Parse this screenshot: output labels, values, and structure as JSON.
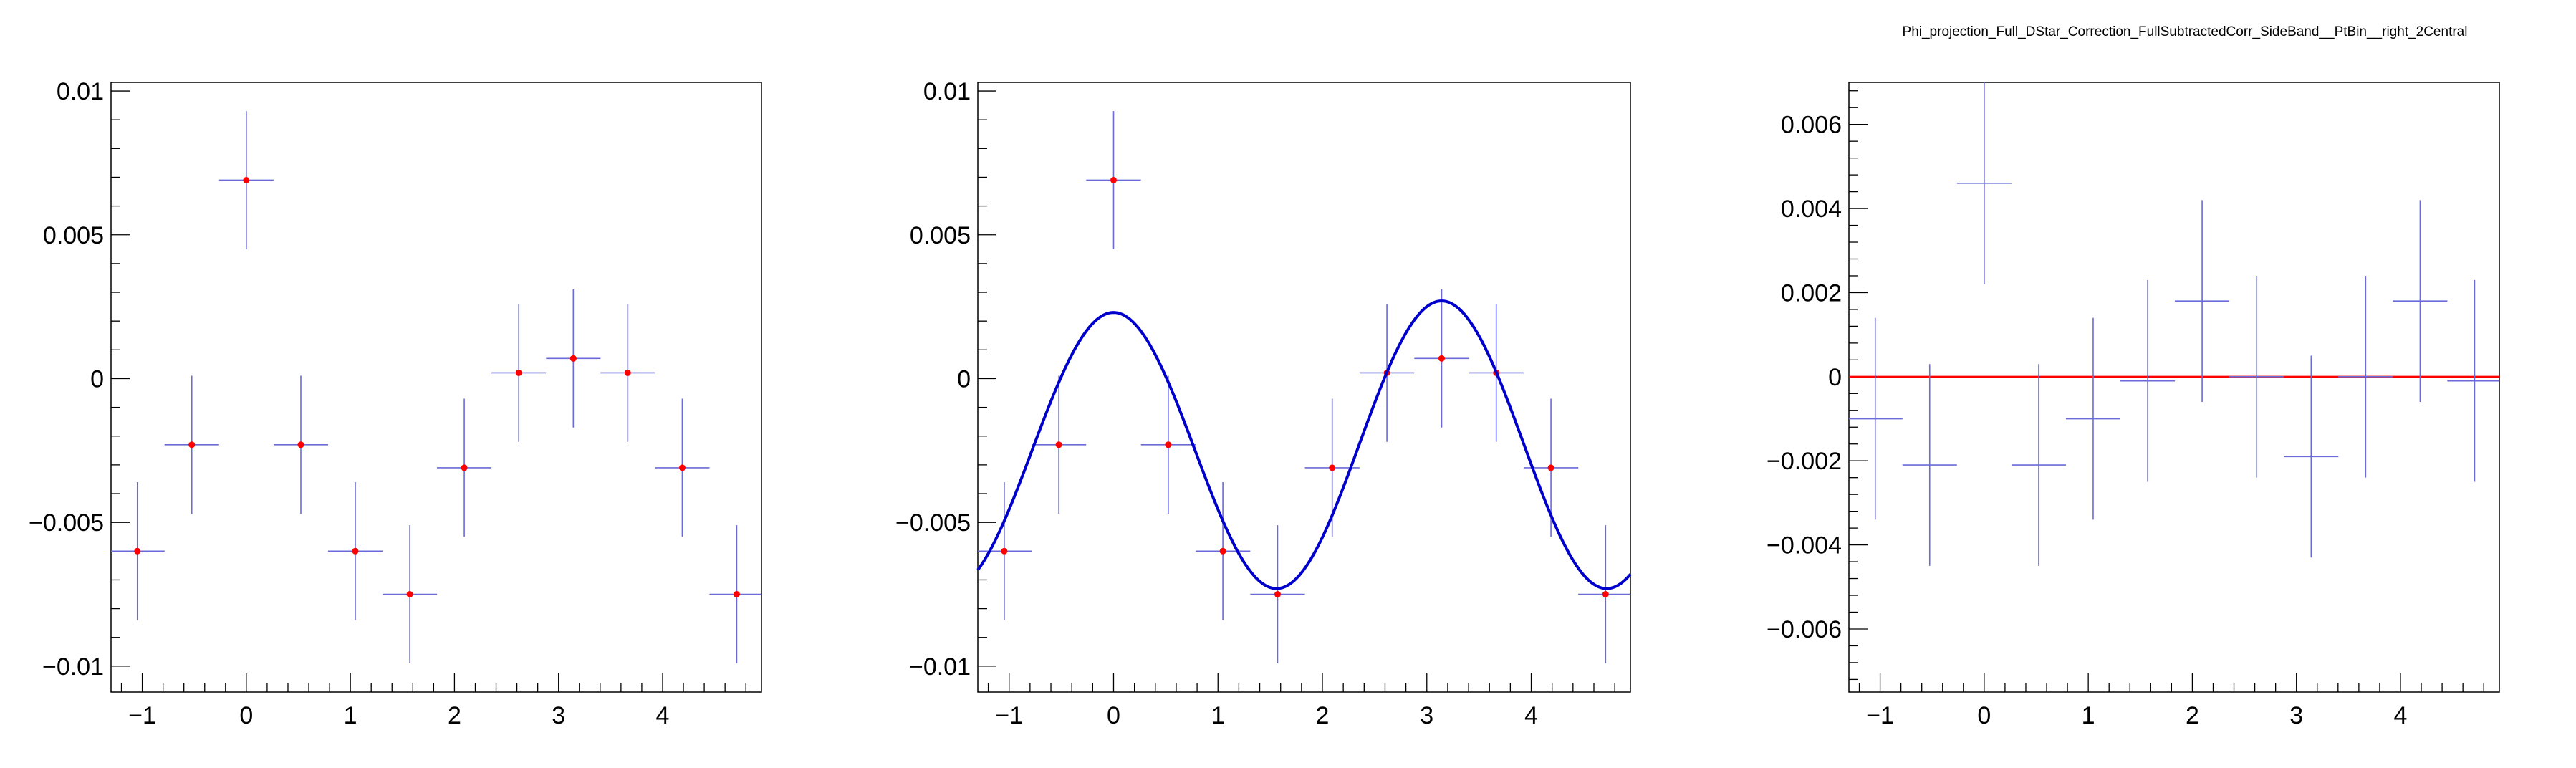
{
  "title": "Phi_projection_Full_DStar_Correction_FullSubtractedCorr_SideBand__PtBin__right_2Central",
  "colors": {
    "points": "#ff0000",
    "error_bars": "#6a6ad8",
    "fit": "#0000cc",
    "zero_line": "#ff0000",
    "frame": "#000000"
  },
  "chart_data": [
    {
      "type": "scatter",
      "name": "",
      "xlim": [
        -1.3,
        4.95
      ],
      "ylim": [
        -0.0109,
        0.0103
      ],
      "x_ticks": [
        -1,
        0,
        1,
        2,
        3,
        4
      ],
      "x_tick_labels": [
        "−1",
        "0",
        "1",
        "2",
        "3",
        "4"
      ],
      "y_ticks": [
        -0.01,
        -0.005,
        0,
        0.005,
        0.01
      ],
      "y_tick_labels": [
        "−0.01",
        "−0.005",
        "0",
        "0.005",
        "0.01"
      ],
      "x_bin_halfwidth": 0.2618,
      "x": [
        -1.047,
        -0.524,
        0.0,
        0.524,
        1.047,
        1.571,
        2.094,
        2.618,
        3.142,
        3.665,
        4.189,
        4.712
      ],
      "y": [
        -0.006,
        -0.0023,
        0.0069,
        -0.0023,
        -0.006,
        -0.0075,
        -0.0031,
        0.0002,
        0.0007,
        0.0002,
        -0.0031,
        -0.0075
      ],
      "y_err": [
        0.0024,
        0.0024,
        0.0024,
        0.0024,
        0.0024,
        0.0024,
        0.0024,
        0.0024,
        0.0024,
        0.0024,
        0.0024,
        0.0024
      ]
    },
    {
      "type": "scatter",
      "name": "",
      "xlim": [
        -1.3,
        4.95
      ],
      "ylim": [
        -0.0109,
        0.0103
      ],
      "x_ticks": [
        -1,
        0,
        1,
        2,
        3,
        4
      ],
      "x_tick_labels": [
        "−1",
        "0",
        "1",
        "2",
        "3",
        "4"
      ],
      "y_ticks": [
        -0.01,
        -0.005,
        0,
        0.005,
        0.01
      ],
      "y_tick_labels": [
        "−0.01",
        "−0.005",
        "0",
        "0.005",
        "0.01"
      ],
      "x_bin_halfwidth": 0.2618,
      "x": [
        -1.047,
        -0.524,
        0.0,
        0.524,
        1.047,
        1.571,
        2.094,
        2.618,
        3.142,
        3.665,
        4.189,
        4.712
      ],
      "y": [
        -0.006,
        -0.0023,
        0.0069,
        -0.0023,
        -0.006,
        -0.0075,
        -0.0031,
        0.0002,
        0.0007,
        0.0002,
        -0.0031,
        -0.0075
      ],
      "y_err": [
        0.0024,
        0.0024,
        0.0024,
        0.0024,
        0.0024,
        0.0024,
        0.0024,
        0.0024,
        0.0024,
        0.0024,
        0.0024,
        0.0024
      ],
      "fit": {
        "form": "a + b*cos(2x) + c*cos(x)",
        "a": -0.0024,
        "b": 0.0049,
        "c": -0.0002,
        "x_range": [
          -1.3,
          4.95
        ]
      }
    },
    {
      "type": "scatter",
      "name": "",
      "xlim": [
        -1.3,
        4.95
      ],
      "ylim": [
        -0.0075,
        0.007
      ],
      "x_ticks": [
        -1,
        0,
        1,
        2,
        3,
        4
      ],
      "x_tick_labels": [
        "−1",
        "0",
        "1",
        "2",
        "3",
        "4"
      ],
      "y_ticks": [
        -0.006,
        -0.004,
        -0.002,
        0,
        0.002,
        0.004,
        0.006
      ],
      "y_tick_labels": [
        "−0.006",
        "−0.004",
        "−0.002",
        "0",
        "0.002",
        "0.004",
        "0.006"
      ],
      "x_bin_halfwidth": 0.2618,
      "x": [
        -1.047,
        -0.524,
        0.0,
        0.524,
        1.047,
        1.571,
        2.094,
        2.618,
        3.142,
        3.665,
        4.189,
        4.712
      ],
      "y": [
        -0.001,
        -0.0021,
        0.0046,
        -0.0021,
        -0.001,
        -0.0001,
        0.0018,
        0.0,
        -0.0019,
        0.0,
        0.0018,
        -0.0001
      ],
      "y_err": [
        0.0024,
        0.0024,
        0.0024,
        0.0024,
        0.0024,
        0.0024,
        0.0024,
        0.0024,
        0.0024,
        0.0024,
        0.0024,
        0.0024
      ],
      "show_points": false,
      "zero_line": true
    }
  ]
}
